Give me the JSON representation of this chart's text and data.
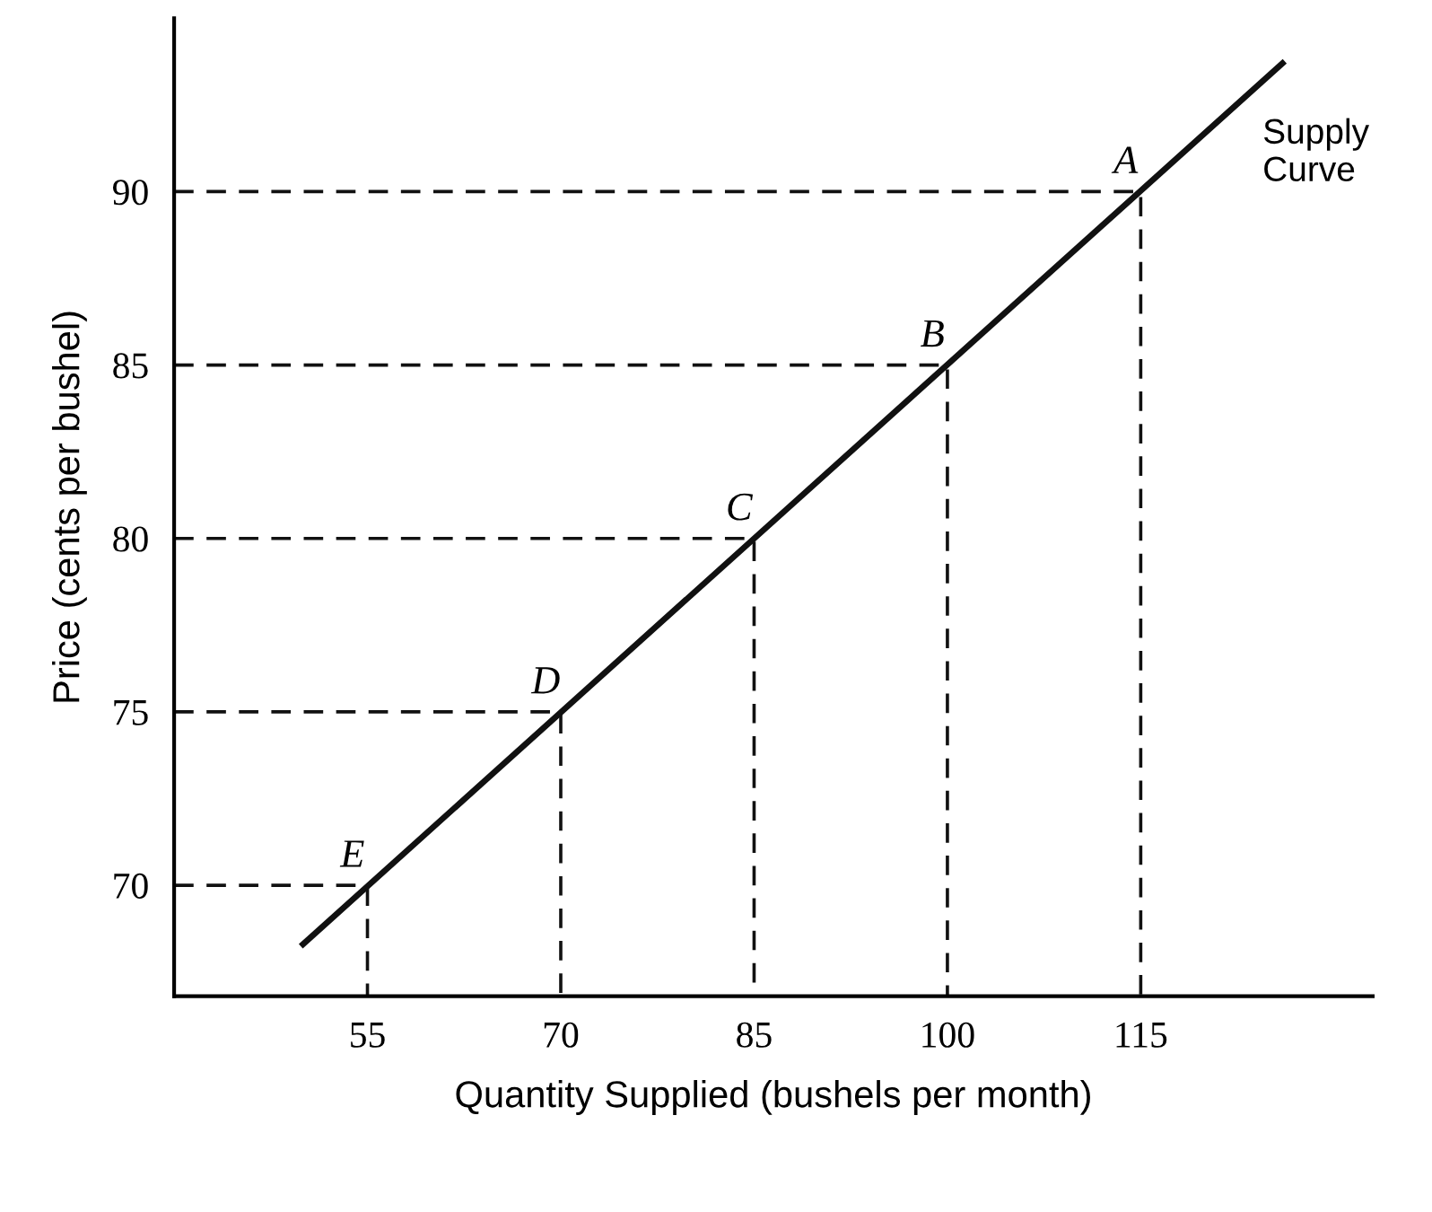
{
  "chart_data": {
    "type": "line",
    "xlabel": "Quantity Supplied (bushels per month)",
    "ylabel": "Price (cents per bushel)",
    "xlim": [
      40,
      133
    ],
    "ylim": [
      66.8,
      95
    ],
    "xticks": [
      55,
      70,
      85,
      100,
      115
    ],
    "yticks": [
      70,
      75,
      80,
      85,
      90
    ],
    "grid": false,
    "marker": "none",
    "series": [
      {
        "color": "#111111",
        "x": [
          50,
          126
        ],
        "values": [
          68.3,
          93.7
        ],
        "line_style": "solid"
      },
      {
        "color": "#111111",
        "x": [
          40,
          115,
          115
        ],
        "values": [
          90,
          90,
          66.8
        ],
        "line_style": "dashed"
      },
      {
        "color": "#111111",
        "x": [
          40,
          100,
          100
        ],
        "values": [
          85,
          85,
          66.8
        ],
        "line_style": "dashed"
      },
      {
        "color": "#111111",
        "x": [
          40,
          85,
          85
        ],
        "values": [
          80,
          80,
          66.8
        ],
        "line_style": "dashed"
      },
      {
        "color": "#111111",
        "x": [
          40,
          70,
          70
        ],
        "values": [
          75,
          75,
          66.8
        ],
        "line_style": "dashed"
      },
      {
        "color": "#111111",
        "x": [
          40,
          55,
          55
        ],
        "values": [
          70,
          70,
          66.8
        ],
        "line_style": "dashed"
      }
    ],
    "annotations": [
      {
        "text": "A",
        "x": 115,
        "y": 90
      },
      {
        "text": "B",
        "x": 100,
        "y": 85
      },
      {
        "text": "C",
        "x": 85,
        "y": 80
      },
      {
        "text": "D",
        "x": 70,
        "y": 75
      },
      {
        "text": "E",
        "x": 55,
        "y": 70
      },
      {
        "text": "Supply\nCurve",
        "x": 126,
        "y": 93.7
      }
    ]
  }
}
